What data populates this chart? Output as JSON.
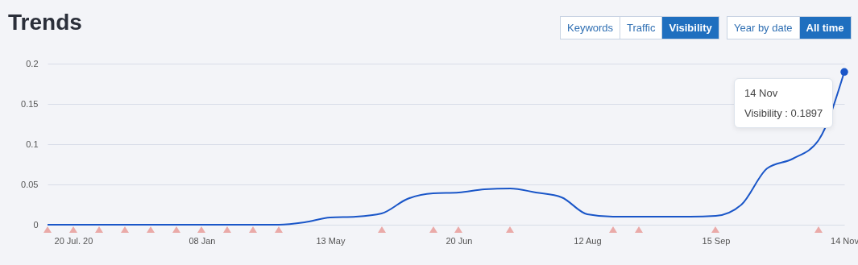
{
  "chart_data": {
    "type": "line",
    "title": "Trends",
    "categories": [
      null,
      "20 Jul. 20",
      null,
      null,
      null,
      null,
      "08 Jan",
      null,
      null,
      null,
      null,
      "13 May",
      null,
      null,
      null,
      null,
      "20 Jun",
      null,
      null,
      null,
      null,
      "12 Aug",
      null,
      null,
      null,
      null,
      "15 Sep",
      null,
      null,
      null,
      null,
      "14 Nov"
    ],
    "series": [
      {
        "color": "#1a56c8",
        "values": [
          0,
          0,
          0,
          0,
          0,
          0,
          0,
          0,
          0,
          0,
          0.003,
          0.009,
          0.01,
          0.014,
          0.032,
          0.039,
          0.04,
          0.044,
          0.045,
          0.04,
          0.034,
          0.013,
          0.01,
          0.01,
          0.01,
          0.01,
          0.011,
          0.025,
          0.07,
          0.082,
          0.105,
          0.1897
        ]
      }
    ],
    "ylim": [
      0,
      0.2
    ],
    "yticks": [
      0,
      0.05,
      0.1,
      0.15,
      0.2
    ],
    "grid": "y",
    "marker": "none",
    "line_style": "solid",
    "annotations": [
      "14 Nov",
      "Visibility : 0.1897",
      "Keywords",
      "Traffic",
      "Visibility",
      "Year by date",
      "All time"
    ]
  }
}
